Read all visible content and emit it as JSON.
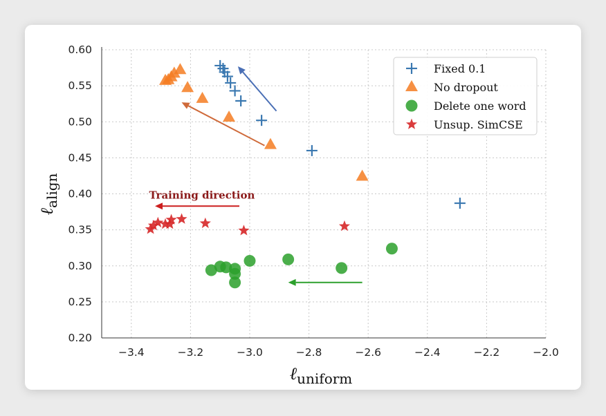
{
  "chart_data": {
    "type": "scatter",
    "xlabel": "ℓ",
    "xlabel_sub": "uniform",
    "ylabel": "ℓ",
    "ylabel_sub": "align",
    "xlim": [
      -3.5,
      -2.0
    ],
    "ylim": [
      0.2,
      0.6
    ],
    "xticks": [
      -3.4,
      -3.2,
      -3.0,
      -2.8,
      -2.6,
      -2.4,
      -2.2,
      -2.0
    ],
    "xtick_labels": [
      "−3.4",
      "−3.2",
      "−3.0",
      "−2.8",
      "−2.6",
      "−2.4",
      "−2.2",
      "−2.0"
    ],
    "yticks": [
      0.2,
      0.25,
      0.3,
      0.35,
      0.4,
      0.45,
      0.5,
      0.55,
      0.6
    ],
    "ytick_labels": [
      "0.20",
      "0.25",
      "0.30",
      "0.35",
      "0.40",
      "0.45",
      "0.50",
      "0.55",
      "0.60"
    ],
    "grid": true,
    "legend_position": "top-right",
    "series": [
      {
        "name": "Fixed 0.1",
        "marker": "plus",
        "color": "#3a78b0",
        "x": [
          -2.29,
          -2.79,
          -2.96,
          -3.03,
          -3.05,
          -3.065,
          -3.075,
          -3.085,
          -3.09,
          -3.1
        ],
        "y": [
          0.387,
          0.46,
          0.502,
          0.529,
          0.543,
          0.554,
          0.563,
          0.569,
          0.574,
          0.578
        ]
      },
      {
        "name": "No dropout",
        "marker": "triangle",
        "color": "#f57c22",
        "x": [
          -2.62,
          -2.93,
          -3.07,
          -3.16,
          -3.21,
          -3.235,
          -3.255,
          -3.265,
          -3.275,
          -3.285
        ],
        "y": [
          0.424,
          0.468,
          0.506,
          0.532,
          0.547,
          0.572,
          0.567,
          0.562,
          0.558,
          0.557
        ]
      },
      {
        "name": "Delete one word",
        "marker": "circle",
        "color": "#2ca02c",
        "x": [
          -2.52,
          -2.69,
          -2.87,
          -3.0,
          -3.05,
          -3.05,
          -3.05,
          -3.08,
          -3.1,
          -3.13
        ],
        "y": [
          0.324,
          0.297,
          0.309,
          0.307,
          0.296,
          0.289,
          0.277,
          0.298,
          0.299,
          0.294
        ]
      },
      {
        "name": "Unsup. SimCSE",
        "marker": "star",
        "color": "#d62728",
        "x": [
          -2.68,
          -3.02,
          -3.15,
          -3.23,
          -3.265,
          -3.27,
          -3.285,
          -3.31,
          -3.325,
          -3.335
        ],
        "y": [
          0.355,
          0.349,
          0.359,
          0.365,
          0.364,
          0.358,
          0.358,
          0.36,
          0.356,
          0.351
        ]
      }
    ],
    "arrows": [
      {
        "color": "#4a6fb5",
        "from": [
          -2.91,
          0.515
        ],
        "to": [
          -3.04,
          0.577
        ]
      },
      {
        "color": "#cf6a3a",
        "from": [
          -2.95,
          0.467
        ],
        "to": [
          -3.23,
          0.527
        ]
      },
      {
        "color": "#2ca02c",
        "from": [
          -2.62,
          0.277
        ],
        "to": [
          -2.87,
          0.277
        ]
      },
      {
        "color": "#cc1e1e",
        "from": [
          -3.035,
          0.383
        ],
        "to": [
          -3.32,
          0.383
        ]
      }
    ],
    "annotation": {
      "text": "Training direction",
      "color": "#8b1a1a",
      "x": -3.34,
      "y": 0.398
    }
  }
}
